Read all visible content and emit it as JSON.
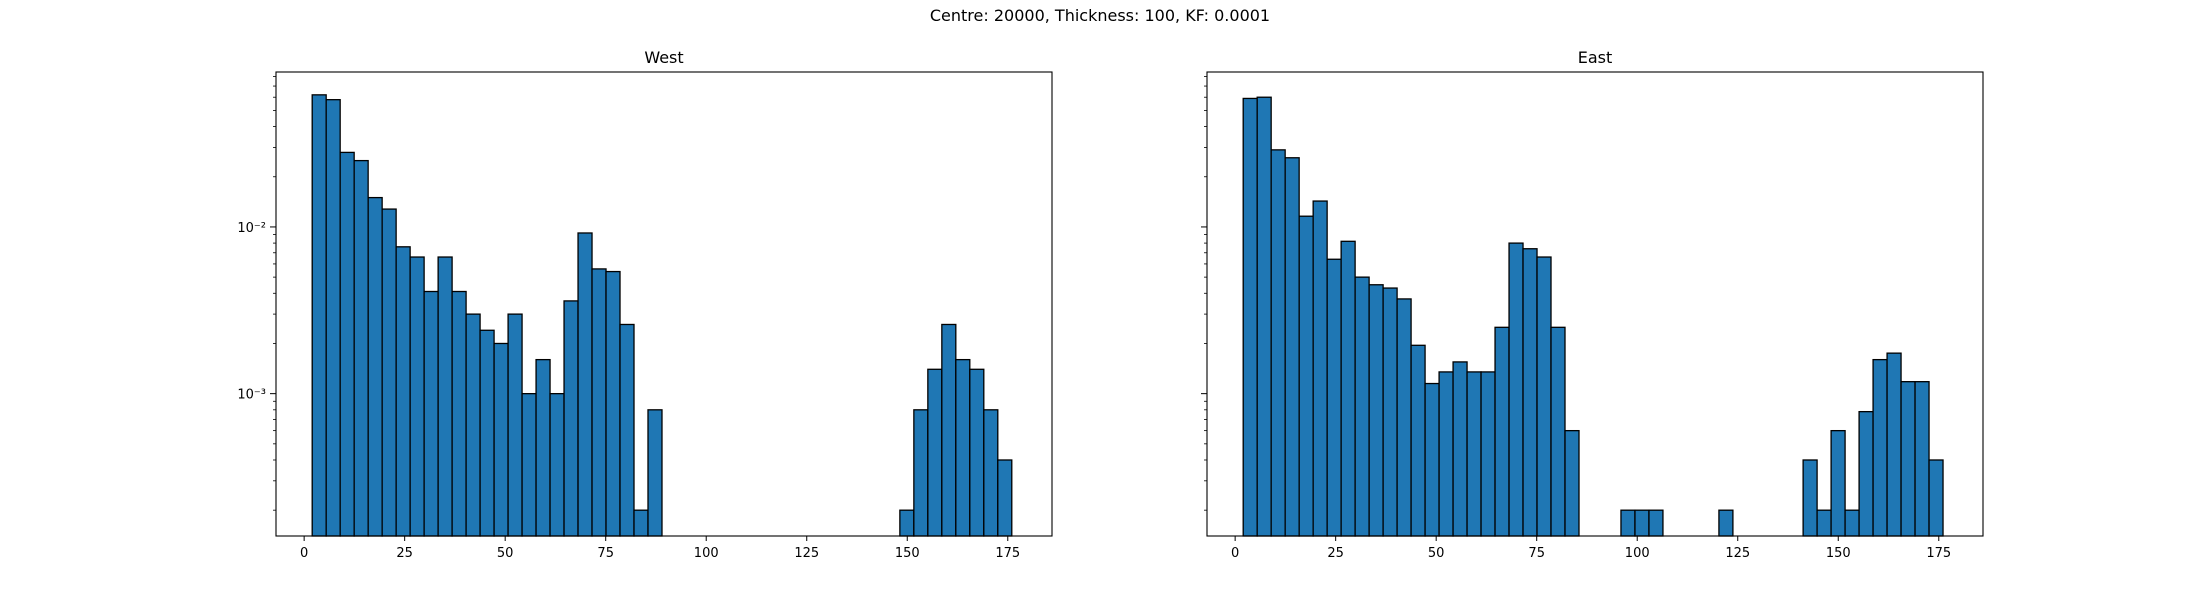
{
  "figure": {
    "suptitle": "Centre: 20000, Thickness: 100, KF: 0.0001"
  },
  "colors": {
    "bar_fill": "#1f77b4",
    "bar_edge": "#000000",
    "background": "#ffffff"
  },
  "chart_data": [
    {
      "type": "bar",
      "title": "West",
      "xlabel": "",
      "ylabel": "",
      "yscale": "log",
      "grid": false,
      "xlim": [
        -7,
        186
      ],
      "ylim": [
        0.00014,
        0.085
      ],
      "xticks": [
        0,
        25,
        50,
        75,
        100,
        125,
        150,
        175
      ],
      "yticks": [
        0.001,
        0.01
      ],
      "ytick_labels": [
        "10⁻³",
        "10⁻²"
      ],
      "bin_width": 3.48,
      "bins": [
        {
          "x": 3.74,
          "y": 0.062
        },
        {
          "x": 7.22,
          "y": 0.058
        },
        {
          "x": 10.7,
          "y": 0.028
        },
        {
          "x": 14.18,
          "y": 0.025
        },
        {
          "x": 17.66,
          "y": 0.015
        },
        {
          "x": 21.14,
          "y": 0.0128
        },
        {
          "x": 24.62,
          "y": 0.0076
        },
        {
          "x": 28.1,
          "y": 0.0066
        },
        {
          "x": 31.58,
          "y": 0.0041
        },
        {
          "x": 35.06,
          "y": 0.0066
        },
        {
          "x": 38.54,
          "y": 0.0041
        },
        {
          "x": 42.02,
          "y": 0.003
        },
        {
          "x": 45.5,
          "y": 0.0024
        },
        {
          "x": 48.98,
          "y": 0.002
        },
        {
          "x": 52.46,
          "y": 0.003
        },
        {
          "x": 55.94,
          "y": 0.001
        },
        {
          "x": 59.42,
          "y": 0.0016
        },
        {
          "x": 62.9,
          "y": 0.001
        },
        {
          "x": 66.38,
          "y": 0.0036
        },
        {
          "x": 69.86,
          "y": 0.0092
        },
        {
          "x": 73.34,
          "y": 0.0056
        },
        {
          "x": 76.82,
          "y": 0.0054
        },
        {
          "x": 80.3,
          "y": 0.0026
        },
        {
          "x": 83.78,
          "y": 0.0002
        },
        {
          "x": 87.26,
          "y": 0.0008
        },
        {
          "x": 149.9,
          "y": 0.0002
        },
        {
          "x": 153.38,
          "y": 0.0008
        },
        {
          "x": 156.86,
          "y": 0.0014
        },
        {
          "x": 160.34,
          "y": 0.0026
        },
        {
          "x": 163.82,
          "y": 0.0016
        },
        {
          "x": 167.3,
          "y": 0.0014
        },
        {
          "x": 170.78,
          "y": 0.0008
        },
        {
          "x": 174.26,
          "y": 0.0004
        }
      ]
    },
    {
      "type": "bar",
      "title": "East",
      "xlabel": "",
      "ylabel": "",
      "yscale": "log",
      "grid": false,
      "xlim": [
        -7,
        186
      ],
      "ylim": [
        0.00014,
        0.085
      ],
      "xticks": [
        0,
        25,
        50,
        75,
        100,
        125,
        150,
        175
      ],
      "yticks": [
        0.001,
        0.01
      ],
      "ytick_labels": [
        "",
        ""
      ],
      "bin_width": 3.48,
      "bins": [
        {
          "x": 3.74,
          "y": 0.059
        },
        {
          "x": 7.22,
          "y": 0.06
        },
        {
          "x": 10.7,
          "y": 0.029
        },
        {
          "x": 14.18,
          "y": 0.026
        },
        {
          "x": 17.66,
          "y": 0.0116
        },
        {
          "x": 21.14,
          "y": 0.0143
        },
        {
          "x": 24.62,
          "y": 0.0064
        },
        {
          "x": 28.1,
          "y": 0.0082
        },
        {
          "x": 31.58,
          "y": 0.005
        },
        {
          "x": 35.06,
          "y": 0.0045
        },
        {
          "x": 38.54,
          "y": 0.0043
        },
        {
          "x": 42.02,
          "y": 0.0037
        },
        {
          "x": 45.5,
          "y": 0.00195
        },
        {
          "x": 48.98,
          "y": 0.00115
        },
        {
          "x": 52.46,
          "y": 0.00135
        },
        {
          "x": 55.94,
          "y": 0.00155
        },
        {
          "x": 59.42,
          "y": 0.00135
        },
        {
          "x": 62.9,
          "y": 0.00135
        },
        {
          "x": 66.38,
          "y": 0.0025
        },
        {
          "x": 69.86,
          "y": 0.008
        },
        {
          "x": 73.34,
          "y": 0.0074
        },
        {
          "x": 76.82,
          "y": 0.0066
        },
        {
          "x": 80.3,
          "y": 0.0025
        },
        {
          "x": 83.78,
          "y": 0.0006
        },
        {
          "x": 97.7,
          "y": 0.0002
        },
        {
          "x": 101.18,
          "y": 0.0002
        },
        {
          "x": 104.66,
          "y": 0.0002
        },
        {
          "x": 122.06,
          "y": 0.0002
        },
        {
          "x": 143.0,
          "y": 0.0004
        },
        {
          "x": 146.48,
          "y": 0.0002
        },
        {
          "x": 149.96,
          "y": 0.0006
        },
        {
          "x": 153.44,
          "y": 0.0002
        },
        {
          "x": 156.92,
          "y": 0.00078
        },
        {
          "x": 160.4,
          "y": 0.0016
        },
        {
          "x": 163.88,
          "y": 0.00175
        },
        {
          "x": 167.36,
          "y": 0.00118
        },
        {
          "x": 170.84,
          "y": 0.00118
        },
        {
          "x": 174.32,
          "y": 0.0004
        }
      ]
    }
  ]
}
